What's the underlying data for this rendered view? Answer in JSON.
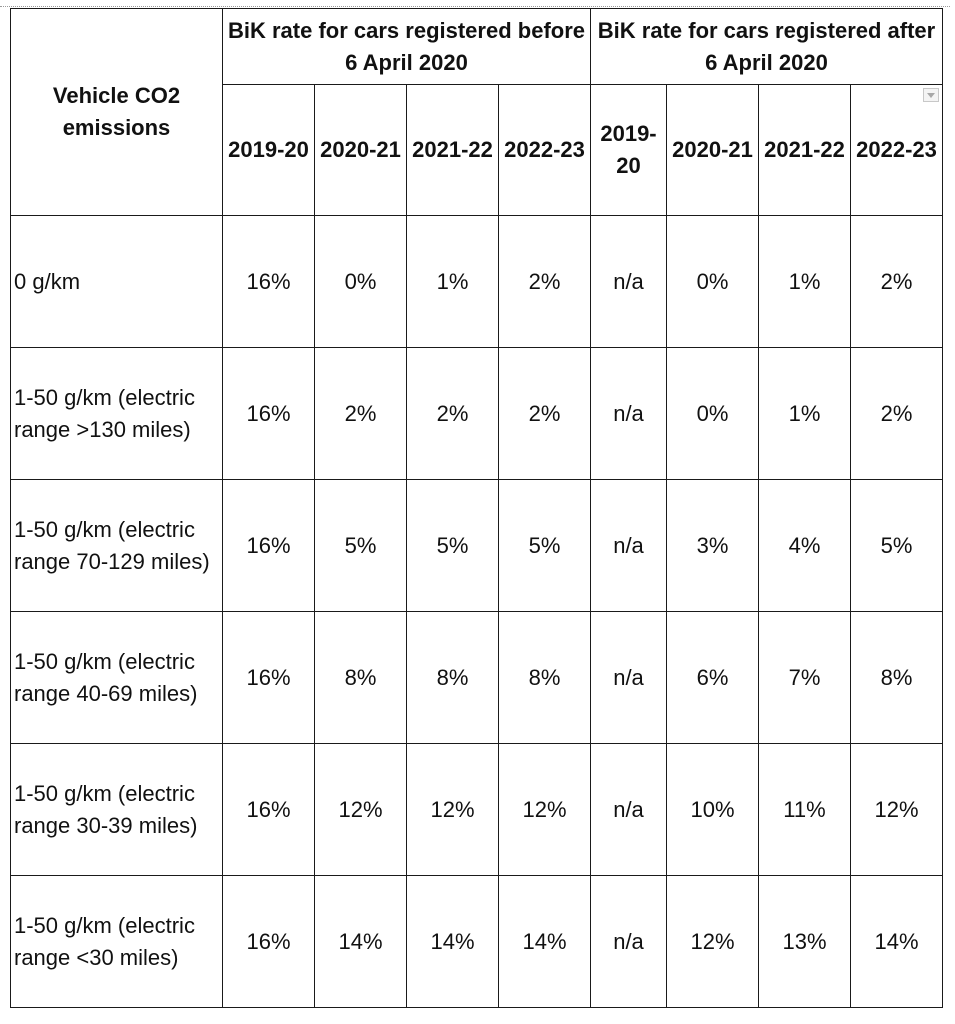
{
  "table": {
    "corner_header": "Vehicle CO2 emissions",
    "group_headers": [
      "BiK rate for cars registered before 6 April 2020",
      "BiK rate for cars registered after 6 April 2020"
    ],
    "year_headers": [
      "2019-20",
      "2020-21",
      "2021-22",
      "2022-23",
      "2019-20",
      "2020-21",
      "2021-22",
      "2022-23"
    ],
    "rows": [
      {
        "label": "0 g/km",
        "values": [
          "16%",
          "0%",
          "1%",
          "2%",
          "n/a",
          "0%",
          "1%",
          "2%"
        ]
      },
      {
        "label": "1-50 g/km (electric range >130 miles)",
        "values": [
          "16%",
          "2%",
          "2%",
          "2%",
          "n/a",
          "0%",
          "1%",
          "2%"
        ]
      },
      {
        "label": "1-50 g/km (electric range 70-129 miles)",
        "values": [
          "16%",
          "5%",
          "5%",
          "5%",
          "n/a",
          "3%",
          "4%",
          "5%"
        ]
      },
      {
        "label": "1-50 g/km (electric range 40-69 miles)",
        "values": [
          "16%",
          "8%",
          "8%",
          "8%",
          "n/a",
          "6%",
          "7%",
          "8%"
        ]
      },
      {
        "label": "1-50 g/km (electric range 30-39 miles)",
        "values": [
          "16%",
          "12%",
          "12%",
          "12%",
          "n/a",
          "10%",
          "11%",
          "12%"
        ]
      },
      {
        "label": "1-50 g/km (electric range <30 miles)",
        "values": [
          "16%",
          "14%",
          "14%",
          "14%",
          "n/a",
          "12%",
          "13%",
          "14%"
        ]
      }
    ]
  }
}
